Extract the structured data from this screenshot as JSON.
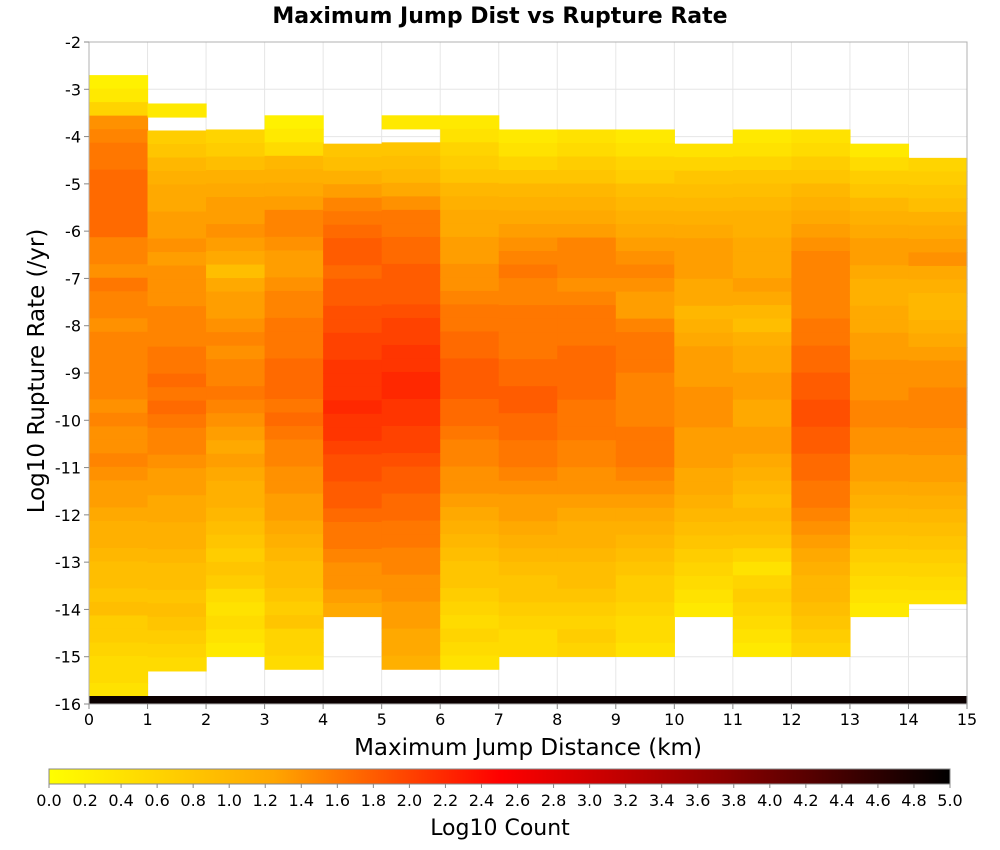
{
  "chart_data": {
    "type": "heatmap",
    "title": "Maximum Jump Dist vs Rupture Rate",
    "xlabel": "Maximum Jump Distance (km)",
    "ylabel": "Log10 Rupture Rate (/yr)",
    "xlim": [
      0,
      15
    ],
    "ylim": [
      -16,
      -2
    ],
    "x_ticks": [
      "0",
      "1",
      "2",
      "3",
      "4",
      "5",
      "6",
      "7",
      "8",
      "9",
      "10",
      "11",
      "12",
      "13",
      "14",
      "15"
    ],
    "y_ticks": [
      "-2",
      "-3",
      "-4",
      "-5",
      "-6",
      "-7",
      "-8",
      "-9",
      "-10",
      "-11",
      "-12",
      "-13",
      "-14",
      "-15",
      "-16"
    ],
    "x_bin_width": 1,
    "y_bin_height": 0.2857,
    "grid": true,
    "colorbar": {
      "title": "Log10 Count",
      "min": 0.0,
      "max": 5.0,
      "ticks": [
        "0.0",
        "0.2",
        "0.4",
        "0.6",
        "0.8",
        "1.0",
        "1.2",
        "1.4",
        "1.6",
        "1.8",
        "2.0",
        "2.2",
        "2.4",
        "2.6",
        "2.8",
        "3.0",
        "3.2",
        "3.4",
        "3.6",
        "3.8",
        "4.0",
        "4.2",
        "4.4",
        "4.6",
        "4.8",
        "5.0"
      ],
      "colors": [
        "#ffff00",
        "#ffa500",
        "#ff0000",
        "#8b0000",
        "#000000"
      ]
    },
    "columns": [
      {
        "x_start": 0,
        "top": -2.7,
        "bottom_value": 4.9,
        "values": [
          0.2,
          0.3,
          0.6,
          1.4,
          1.5,
          1.6,
          1.6,
          1.7,
          1.7,
          1.7,
          1.7,
          1.7,
          1.5,
          1.5,
          1.4,
          1.6,
          1.5,
          1.5,
          1.4,
          1.5,
          1.5,
          1.5,
          1.5,
          1.5,
          1.4,
          1.5,
          1.4,
          1.4,
          1.5,
          1.4,
          1.3,
          1.3,
          1.2,
          1.1,
          1.1,
          1.0,
          0.9,
          0.9,
          0.8,
          0.9,
          0.7,
          0.7,
          0.6,
          0.5,
          0.5,
          0.4
        ]
      },
      {
        "x_start": 1,
        "top": -3.3,
        "bottom_value": 4.9,
        "values": [
          0.3,
          null,
          0.7,
          0.8,
          1.0,
          1.1,
          1.2,
          1.2,
          1.3,
          1.3,
          1.4,
          1.3,
          1.4,
          1.4,
          1.4,
          1.5,
          1.5,
          1.5,
          1.6,
          1.6,
          1.7,
          1.6,
          1.7,
          1.6,
          1.5,
          1.5,
          1.4,
          1.3,
          1.3,
          1.2,
          1.2,
          1.1,
          1.1,
          1.0,
          0.9,
          0.9,
          0.8,
          0.9,
          0.8,
          0.7,
          0.6,
          0.5
        ]
      },
      {
        "x_start": 2,
        "top": -3.85,
        "bottom_value": 4.9,
        "values": [
          0.6,
          0.7,
          0.9,
          1.1,
          1.2,
          1.3,
          1.3,
          1.4,
          1.3,
          1.2,
          0.9,
          1.2,
          1.3,
          1.3,
          1.4,
          1.5,
          1.4,
          1.5,
          1.5,
          1.6,
          1.5,
          1.4,
          1.3,
          1.2,
          1.3,
          1.2,
          1.1,
          1.1,
          1.0,
          0.9,
          0.8,
          0.7,
          0.8,
          0.7,
          0.5,
          0.4,
          0.5,
          0.4,
          0.3
        ]
      },
      {
        "x_start": 3,
        "top": -3.55,
        "bottom_value": 4.9,
        "values": [
          0.2,
          0.3,
          0.5,
          1.0,
          1.1,
          1.2,
          1.3,
          1.5,
          1.5,
          1.4,
          1.3,
          1.3,
          1.4,
          1.5,
          1.5,
          1.6,
          1.6,
          1.6,
          1.7,
          1.7,
          1.7,
          1.6,
          1.7,
          1.6,
          1.5,
          1.5,
          1.4,
          1.4,
          1.3,
          1.3,
          1.2,
          1.1,
          1.0,
          0.9,
          0.9,
          0.8,
          0.7,
          0.8,
          0.6,
          0.6,
          0.5
        ]
      },
      {
        "x_start": 4,
        "top": -4.15,
        "bottom_value": 4.9,
        "values": [
          0.8,
          0.9,
          1.1,
          1.3,
          1.5,
          1.6,
          1.7,
          1.8,
          1.8,
          1.7,
          1.8,
          1.8,
          1.9,
          1.9,
          2.0,
          2.0,
          2.1,
          2.1,
          2.1,
          2.2,
          2.1,
          2.1,
          2.0,
          1.9,
          1.9,
          1.8,
          1.8,
          1.7,
          1.6,
          1.6,
          1.5,
          1.4,
          1.4,
          1.3,
          1.2
        ]
      },
      {
        "x_start": 5,
        "top": -3.55,
        "bottom_value": 4.9,
        "values": [
          0.3,
          null,
          0.8,
          0.9,
          1.0,
          1.2,
          1.4,
          1.6,
          1.6,
          1.7,
          1.7,
          1.8,
          1.8,
          1.8,
          1.9,
          2.0,
          2.0,
          2.1,
          2.1,
          2.2,
          2.2,
          2.1,
          2.1,
          2.0,
          2.0,
          1.9,
          1.8,
          1.8,
          1.7,
          1.7,
          1.6,
          1.6,
          1.5,
          1.5,
          1.4,
          1.4,
          1.3,
          1.3,
          1.2,
          1.2,
          1.1
        ]
      },
      {
        "x_start": 6,
        "top": -3.55,
        "bottom_value": 4.9,
        "values": [
          0.3,
          0.4,
          0.6,
          0.7,
          0.8,
          1.0,
          1.1,
          1.2,
          1.2,
          1.3,
          1.3,
          1.4,
          1.4,
          1.5,
          1.6,
          1.6,
          1.7,
          1.7,
          1.8,
          1.8,
          1.8,
          1.7,
          1.7,
          1.6,
          1.5,
          1.5,
          1.4,
          1.4,
          1.3,
          1.2,
          1.1,
          1.0,
          0.9,
          0.8,
          0.8,
          0.7,
          0.6,
          0.5,
          0.6,
          0.5,
          0.4
        ]
      },
      {
        "x_start": 7,
        "top": -3.85,
        "bottom_value": 4.9,
        "values": [
          0.3,
          0.4,
          0.6,
          0.8,
          1.0,
          1.1,
          1.2,
          1.3,
          1.4,
          1.5,
          1.6,
          1.5,
          1.5,
          1.6,
          1.6,
          1.6,
          1.6,
          1.7,
          1.7,
          1.8,
          1.8,
          1.7,
          1.7,
          1.6,
          1.6,
          1.5,
          1.4,
          1.3,
          1.3,
          1.2,
          1.1,
          1.0,
          0.9,
          0.8,
          0.8,
          0.7,
          0.6,
          0.5,
          0.5
        ]
      },
      {
        "x_start": 8,
        "top": -3.85,
        "bottom_value": 4.9,
        "values": [
          0.4,
          0.5,
          0.7,
          0.8,
          1.0,
          1.1,
          1.2,
          1.3,
          1.5,
          1.5,
          1.5,
          1.4,
          1.5,
          1.6,
          1.6,
          1.6,
          1.7,
          1.7,
          1.7,
          1.7,
          1.6,
          1.6,
          1.6,
          1.5,
          1.5,
          1.4,
          1.4,
          1.3,
          1.2,
          1.1,
          1.1,
          1.0,
          0.9,
          0.9,
          0.8,
          0.7,
          0.6,
          0.7,
          0.6
        ]
      },
      {
        "x_start": 9,
        "top": -3.85,
        "bottom_value": 4.9,
        "values": [
          0.3,
          0.4,
          0.6,
          0.7,
          0.9,
          1.0,
          1.1,
          1.2,
          1.3,
          1.4,
          1.5,
          1.4,
          1.3,
          1.3,
          1.5,
          1.6,
          1.6,
          1.6,
          1.5,
          1.5,
          1.5,
          1.5,
          1.6,
          1.6,
          1.6,
          1.5,
          1.4,
          1.3,
          1.2,
          1.1,
          1.0,
          0.9,
          0.8,
          0.7,
          0.7,
          0.6,
          0.5,
          0.5,
          0.4
        ]
      },
      {
        "x_start": 10,
        "top": -4.15,
        "bottom_value": 4.9,
        "values": [
          0.4,
          0.6,
          0.8,
          0.9,
          1.0,
          1.1,
          1.2,
          1.3,
          1.3,
          1.3,
          1.2,
          1.2,
          1.0,
          1.1,
          1.2,
          1.3,
          1.3,
          1.3,
          1.4,
          1.4,
          1.4,
          1.3,
          1.3,
          1.3,
          1.2,
          1.2,
          1.1,
          1.0,
          0.9,
          0.8,
          0.7,
          0.6,
          0.5,
          0.4,
          0.3
        ]
      },
      {
        "x_start": 11,
        "top": -3.85,
        "bottom_value": 4.9,
        "values": [
          0.3,
          0.4,
          0.6,
          0.8,
          0.9,
          1.0,
          1.1,
          1.1,
          1.2,
          1.2,
          1.2,
          1.3,
          1.2,
          1.0,
          0.9,
          1.1,
          1.2,
          1.2,
          1.3,
          1.3,
          1.2,
          1.2,
          1.3,
          1.3,
          1.2,
          1.1,
          1.0,
          0.9,
          1.0,
          0.9,
          0.8,
          0.6,
          0.4,
          0.6,
          0.7,
          0.6,
          0.5,
          0.4,
          0.3
        ]
      },
      {
        "x_start": 12,
        "top": -3.85,
        "bottom_value": 4.9,
        "values": [
          0.4,
          0.5,
          0.7,
          0.8,
          1.0,
          1.1,
          1.2,
          1.3,
          1.4,
          1.5,
          1.5,
          1.5,
          1.5,
          1.5,
          1.6,
          1.6,
          1.7,
          1.7,
          1.8,
          1.8,
          1.9,
          1.9,
          1.8,
          1.8,
          1.7,
          1.7,
          1.6,
          1.6,
          1.5,
          1.4,
          1.3,
          1.2,
          1.1,
          1.0,
          1.0,
          0.9,
          0.8,
          0.7,
          0.6
        ]
      },
      {
        "x_start": 13,
        "top": -4.15,
        "bottom_value": 4.9,
        "values": [
          0.3,
          0.5,
          0.7,
          0.8,
          1.0,
          1.1,
          1.2,
          1.3,
          1.3,
          1.2,
          1.1,
          1.1,
          1.2,
          1.2,
          1.3,
          1.3,
          1.4,
          1.4,
          1.4,
          1.5,
          1.5,
          1.4,
          1.4,
          1.3,
          1.3,
          1.2,
          1.1,
          1.0,
          0.9,
          0.8,
          0.7,
          0.6,
          0.5,
          0.4,
          0.3
        ]
      },
      {
        "x_start": 14,
        "top": -4.45,
        "bottom_value": 4.9,
        "values": [
          0.6,
          0.7,
          0.8,
          0.9,
          1.1,
          1.2,
          1.3,
          1.4,
          1.2,
          1.1,
          1.0,
          1.0,
          1.1,
          1.2,
          1.3,
          1.4,
          1.4,
          1.5,
          1.5,
          1.5,
          1.4,
          1.4,
          1.3,
          1.3,
          1.2,
          1.1,
          1.0,
          0.9,
          0.8,
          0.7,
          0.6,
          0.5,
          0.4
        ]
      }
    ]
  }
}
